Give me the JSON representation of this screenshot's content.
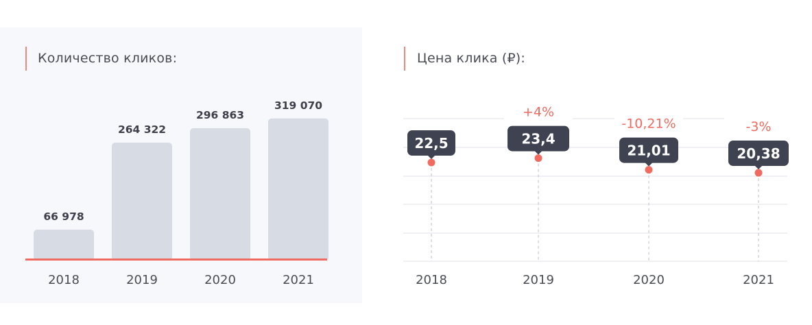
{
  "chart_data": [
    {
      "type": "bar",
      "title": "Количество кликов:",
      "categories": [
        "2018",
        "2019",
        "2020",
        "2021"
      ],
      "values": [
        66978,
        264322,
        296863,
        319070
      ],
      "value_labels": [
        "66 978",
        "264 322",
        "296 863",
        "319 070"
      ],
      "ylim": [
        0,
        370000
      ],
      "grid": false,
      "colors": {
        "bar": "#d7dbe4",
        "baseline": "#f06a5f",
        "accent": "#f06a5f"
      }
    },
    {
      "type": "scatter",
      "title": "Цена клика (₽):",
      "categories": [
        "2018",
        "2019",
        "2020",
        "2021"
      ],
      "values": [
        22.5,
        23.4,
        21.01,
        20.38
      ],
      "value_labels": [
        "22,5",
        "23,4",
        "21,01",
        "20,38"
      ],
      "change_labels": [
        "",
        "+4%",
        "-10,21%",
        "-3%"
      ],
      "grid": true,
      "colors": {
        "point": "#f06a5f",
        "label_box": "#3f4250",
        "change": "#f06a5f",
        "grid": "#ececf0"
      }
    }
  ]
}
